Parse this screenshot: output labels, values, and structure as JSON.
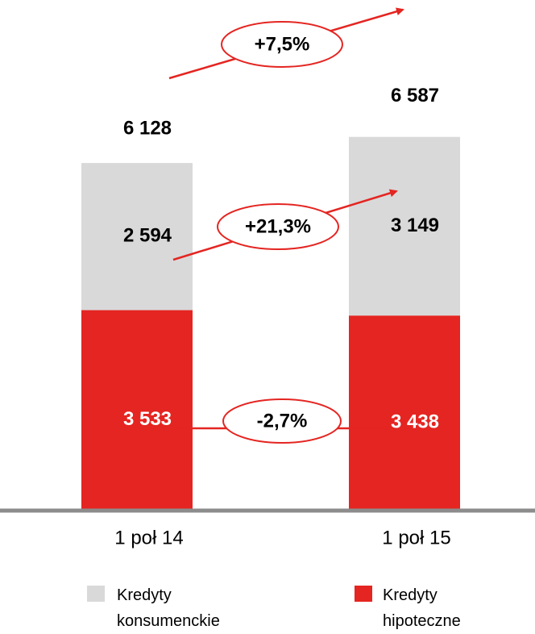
{
  "chart_data": {
    "type": "stacked_bar",
    "categories": [
      "1 poł 14",
      "1 poł 15"
    ],
    "series": [
      {
        "name": "Kredyty hipoteczne",
        "color": "#e42521",
        "values": [
          3533,
          3438
        ],
        "value_labels": [
          "3 533",
          "3 438"
        ]
      },
      {
        "name": "Kredyty konsumenckie",
        "color": "#d9d9d9",
        "values": [
          2594,
          3149
        ],
        "value_labels": [
          "2 594",
          "3 149"
        ]
      }
    ],
    "totals": [
      6128,
      6587
    ],
    "totals_labels": [
      "6 128",
      "6 587"
    ],
    "annotations": [
      "+7,5%",
      "+21,3%",
      "-2,7%"
    ],
    "ylim": [
      0,
      9000
    ]
  }
}
